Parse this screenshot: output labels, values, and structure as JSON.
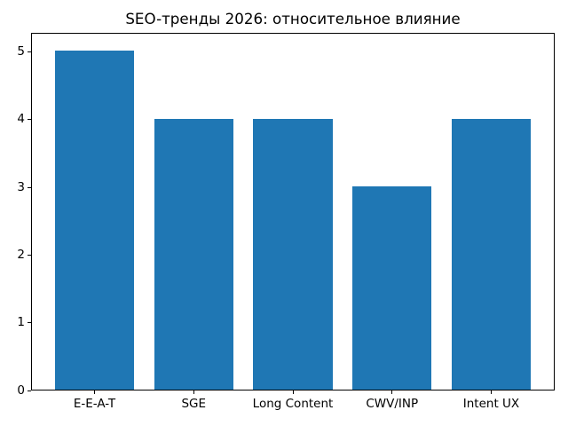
{
  "chart_data": {
    "type": "bar",
    "title": "SEO-тренды 2026: относительное влияние",
    "categories": [
      "E-E-A-T",
      "SGE",
      "Long Content",
      "CWV/INP",
      "Intent UX"
    ],
    "values": [
      5,
      4,
      4,
      3,
      4
    ],
    "yticks": [
      0,
      1,
      2,
      3,
      4,
      5
    ],
    "ylim": [
      0,
      5.28
    ],
    "xlabel": "",
    "ylabel": "",
    "bar_color": "#1f77b4",
    "axis_color": "#000000",
    "background_color": "#ffffff",
    "grid": false,
    "legend_position": "none"
  }
}
